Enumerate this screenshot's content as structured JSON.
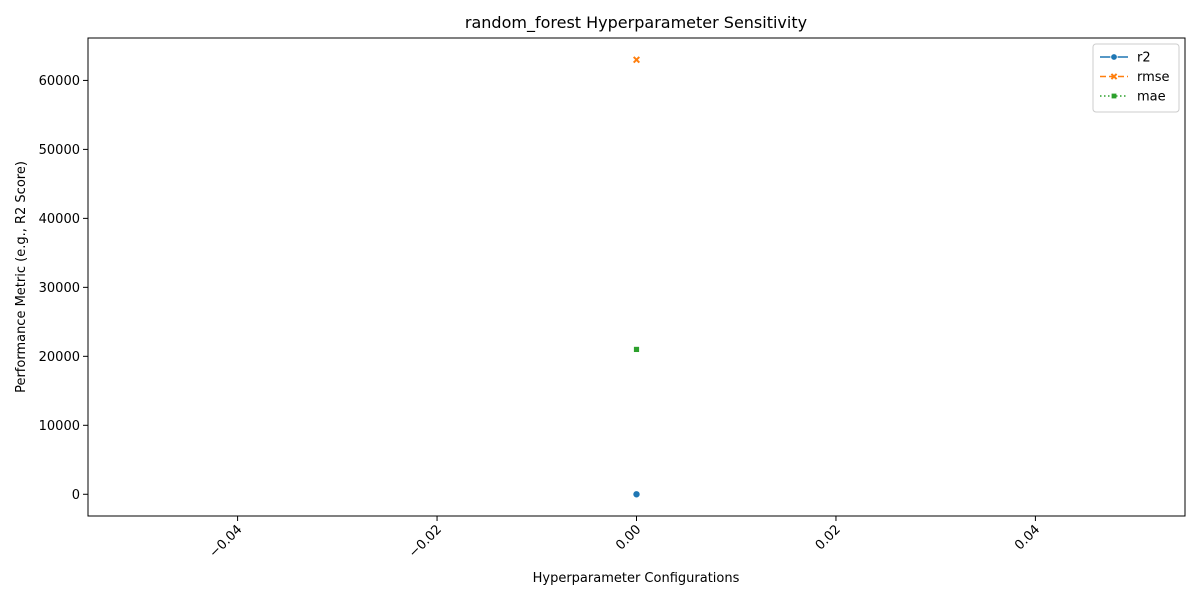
{
  "chart_data": {
    "type": "line",
    "title": "random_forest Hyperparameter Sensitivity",
    "xlabel": "Hyperparameter Configurations",
    "ylabel": "Performance Metric (e.g., R2 Score)",
    "xlim": [
      -0.055,
      0.055
    ],
    "ylim": [
      -3150,
      66150
    ],
    "x_ticks": [
      -0.04,
      -0.02,
      0.0,
      0.02,
      0.04
    ],
    "x_tick_labels": [
      "−0.04",
      "−0.02",
      "0.00",
      "0.02",
      "0.04"
    ],
    "y_ticks": [
      0,
      10000,
      20000,
      30000,
      40000,
      50000,
      60000
    ],
    "y_tick_labels": [
      "0",
      "10000",
      "20000",
      "30000",
      "40000",
      "50000",
      "60000"
    ],
    "grid": false,
    "legend_position": "top-right",
    "series": [
      {
        "name": "r2",
        "x": [
          0
        ],
        "y": [
          0.85
        ],
        "color": "#1f77b4",
        "marker": "circle",
        "linestyle": "solid"
      },
      {
        "name": "rmse",
        "x": [
          0
        ],
        "y": [
          63000
        ],
        "color": "#ff7f0e",
        "marker": "x",
        "linestyle": "dashed"
      },
      {
        "name": "mae",
        "x": [
          0
        ],
        "y": [
          21000
        ],
        "color": "#2ca02c",
        "marker": "square",
        "linestyle": "dotted"
      }
    ]
  }
}
